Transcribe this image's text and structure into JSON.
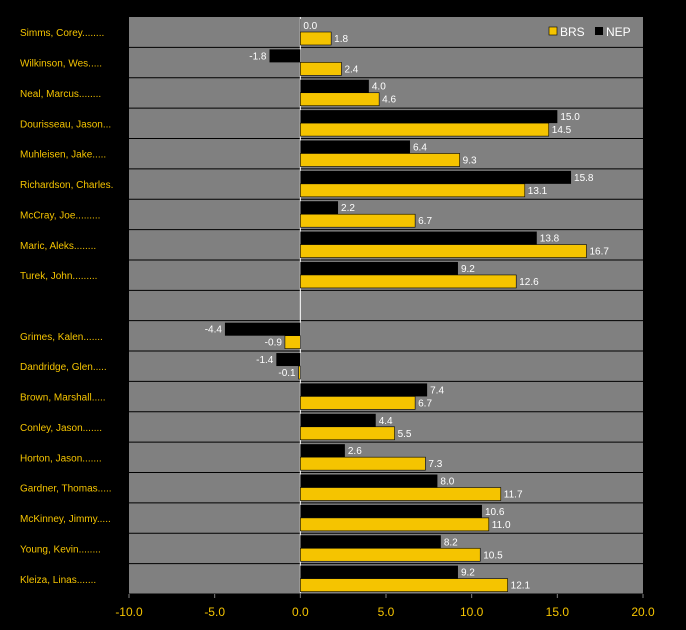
{
  "chart_data": {
    "type": "bar",
    "orientation": "horizontal",
    "categories": [
      "Simms, Corey........",
      "Wilkinson, Wes.....",
      "Neal, Marcus........",
      "Dourisseau, Jason...",
      "Muhleisen, Jake.....",
      "Richardson, Charles.",
      "McCray, Joe.........",
      "Maric, Aleks........",
      "Turek, John.........",
      "",
      "Grimes, Kalen.......",
      "Dandridge, Glen.....",
      "Brown, Marshall.....",
      "Conley, Jason.......",
      "Horton, Jason.......",
      "Gardner, Thomas.....",
      "McKinney, Jimmy.....",
      "Young, Kevin........",
      "Kleiza, Linas......."
    ],
    "series": [
      {
        "name": "NEP",
        "color": "#000000",
        "values": [
          0.0,
          -1.8,
          4.0,
          15.0,
          6.4,
          15.8,
          2.2,
          13.8,
          9.2,
          null,
          -4.4,
          -1.4,
          7.4,
          4.4,
          2.6,
          8.0,
          10.6,
          8.2,
          9.2
        ],
        "labels": [
          "0.0",
          "-1.8",
          "4.0",
          "15.0",
          "6.4",
          "15.8",
          "2.2",
          "13.8",
          "9.2",
          "",
          "-4.4",
          "-1.4",
          "7.4",
          "4.4",
          "2.6",
          "8.0",
          "10.6",
          "8.2",
          "9.2"
        ]
      },
      {
        "name": "BRS",
        "color": "#f5c400",
        "values": [
          1.8,
          2.4,
          4.6,
          14.5,
          9.3,
          13.1,
          6.7,
          16.7,
          12.6,
          null,
          -0.9,
          -0.1,
          6.7,
          5.5,
          7.3,
          11.7,
          11.0,
          10.5,
          12.1
        ],
        "labels": [
          "1.8",
          "2.4",
          "4.6",
          "14.5",
          "9.3",
          "13.1",
          "6.7",
          "16.7",
          "12.6",
          "",
          "-0.9",
          "-0.1",
          "6.7",
          "5.5",
          "7.3",
          "11.7",
          "11.0",
          "10.5",
          "12.1"
        ]
      }
    ],
    "xlim": [
      -10,
      20
    ],
    "xticks": [
      "-10.0",
      "-5.0",
      "0.0",
      "5.0",
      "10.0",
      "15.0",
      "20.0"
    ],
    "legend": {
      "placement": "top-right",
      "entries": [
        "BRS",
        "NEP"
      ]
    },
    "grid": false,
    "title": "",
    "xlabel": "",
    "ylabel": ""
  },
  "colors": {
    "background": "#000000",
    "plot_area": "#808080",
    "label_text": "#f5c400",
    "value_text": "#ffffff"
  }
}
